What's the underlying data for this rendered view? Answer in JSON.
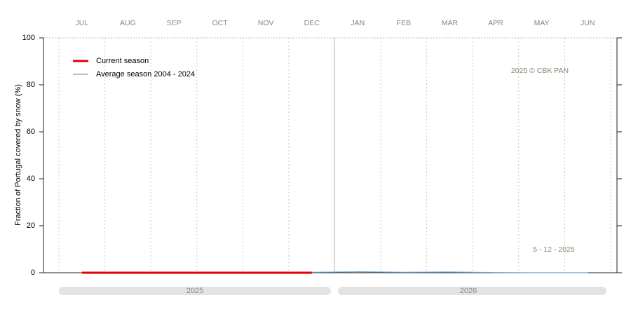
{
  "chart_data": {
    "type": "line",
    "ylabel": "Fraction of  Portugal  covered by snow (%)",
    "categories": [
      "JUL",
      "AUG",
      "SEP",
      "OCT",
      "NOV",
      "DEC",
      "JAN",
      "FEB",
      "MAR",
      "APR",
      "MAY",
      "JUN"
    ],
    "series": [
      {
        "name": "Current season",
        "color": "#e00000",
        "values": [
          0,
          0,
          0,
          0,
          0,
          0,
          null,
          null,
          null,
          null,
          null,
          null
        ]
      },
      {
        "name": "Average season 2004 - 2024",
        "color": "#6a9fd4",
        "values": [
          0,
          0,
          0,
          0,
          0,
          0.2,
          0.4,
          0.2,
          0.3,
          0.1,
          0,
          0
        ]
      }
    ],
    "ylim": [
      0,
      100
    ],
    "yticks": [
      0,
      20,
      40,
      60,
      80,
      100
    ],
    "legend": "upper-left",
    "annotations": [
      "2025  © CBK PAN",
      "5 - 12 - 2025"
    ],
    "years": [
      "2025",
      "2026"
    ]
  }
}
